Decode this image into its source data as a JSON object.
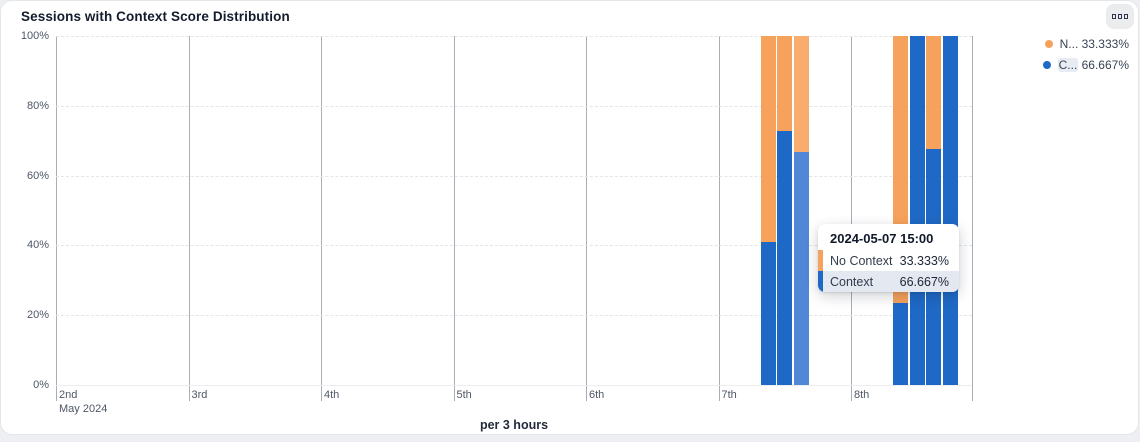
{
  "card": {
    "title": "Sessions with Context Score Distribution",
    "menu_icon": "three-squares-icon"
  },
  "legend": {
    "items": [
      {
        "short_label": "N...",
        "full_name": "No Context",
        "value": "33.333%",
        "color": "#F7A25C",
        "highlighted": false
      },
      {
        "short_label": "C...",
        "full_name": "Context",
        "value": "66.667%",
        "color": "#1F69C6",
        "highlighted": true
      }
    ]
  },
  "chart_data": {
    "type": "bar",
    "stacked": true,
    "unit": "percent",
    "title": "Sessions with Context Score Distribution",
    "xlabel": "per 3 hours",
    "ylabel": "",
    "ylim": [
      0,
      100
    ],
    "y_ticks": [
      "0%",
      "20%",
      "40%",
      "60%",
      "80%",
      "100%"
    ],
    "x_axis": {
      "month_label": "May 2024",
      "day_ticks": [
        "2nd",
        "3rd",
        "4th",
        "5th",
        "6th",
        "7th",
        "8th"
      ]
    },
    "grid": {
      "horizontal": "dashed",
      "vertical": "solid"
    },
    "legend_position": "top-right",
    "series": [
      {
        "name": "No Context",
        "color": "#F7A25C"
      },
      {
        "name": "Context",
        "color": "#1F69C6"
      }
    ],
    "bars": [
      {
        "time": "2024-05-07 09:00",
        "no_context": 59.0,
        "context": 41.0,
        "hovered": false
      },
      {
        "time": "2024-05-07 12:00",
        "no_context": 27.3,
        "context": 72.7,
        "hovered": false
      },
      {
        "time": "2024-05-07 15:00",
        "no_context": 33.333,
        "context": 66.667,
        "hovered": true
      },
      {
        "time": "2024-05-08 09:00",
        "no_context": 76.5,
        "context": 23.5,
        "hovered": false
      },
      {
        "time": "2024-05-08 12:00",
        "no_context": 0,
        "context": 100,
        "hovered": false
      },
      {
        "time": "2024-05-08 15:00",
        "no_context": 32.5,
        "context": 67.5,
        "hovered": false
      },
      {
        "time": "2024-05-08 18:00",
        "no_context": 0,
        "context": 100,
        "hovered": false
      }
    ],
    "colors": {
      "no_context": "#F7A25C",
      "context": "#1F69C6",
      "no_context_hover": "#F8AC6E",
      "context_hover": "#5287D7"
    }
  },
  "tooltip": {
    "title": "2024-05-07 15:00",
    "rows": [
      {
        "label": "No Context",
        "value": "33.333%",
        "color": "#F7A25C",
        "highlighted": false
      },
      {
        "label": "Context",
        "value": "66.667%",
        "color": "#1F69C6",
        "highlighted": true
      }
    ]
  },
  "footer": {
    "axis_caption": "per 3 hours"
  }
}
